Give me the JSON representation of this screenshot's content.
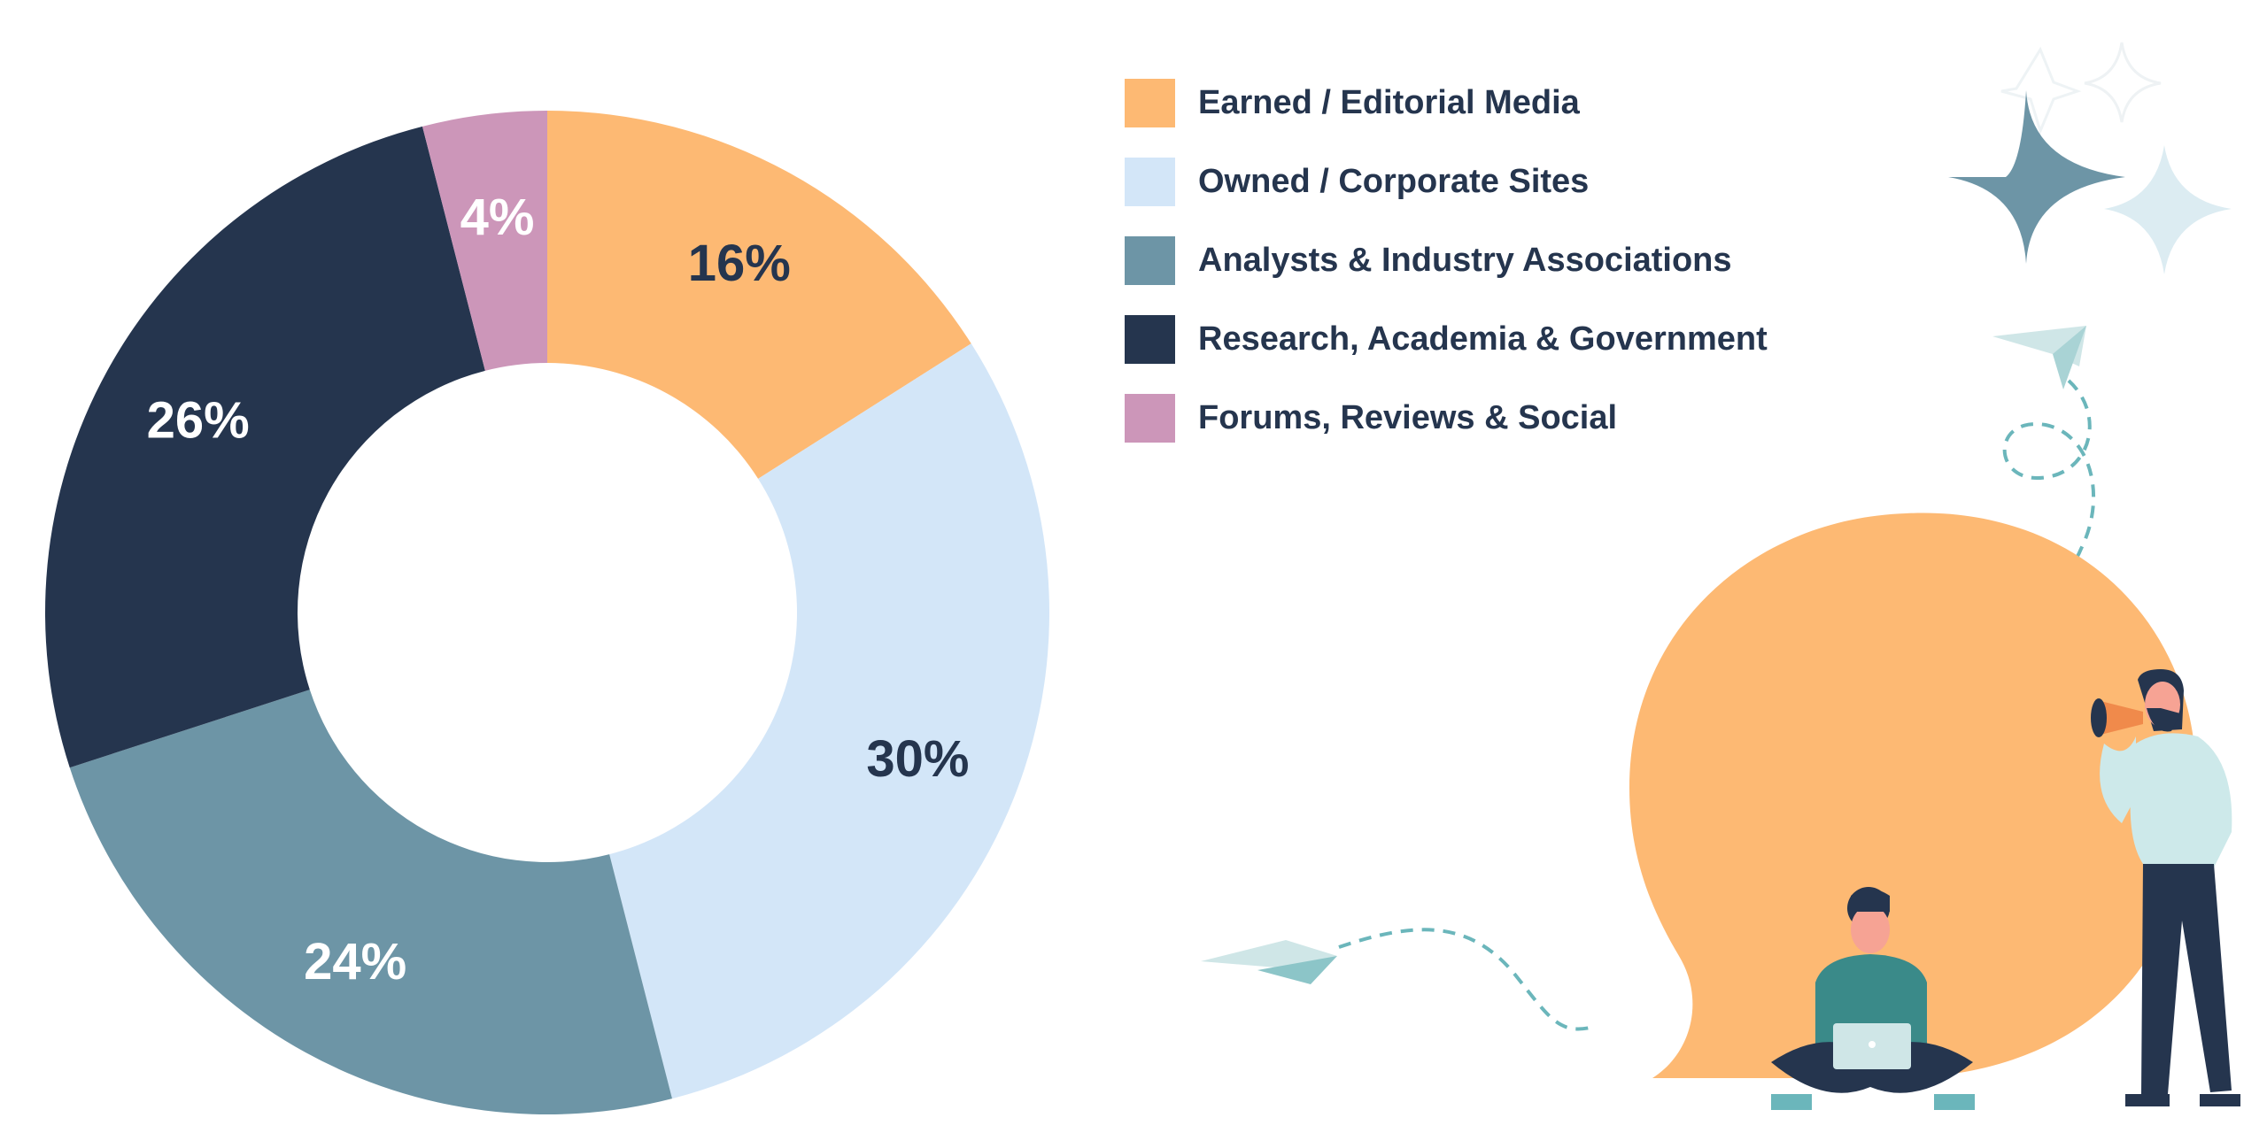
{
  "chart_data": {
    "type": "donut",
    "series": [
      {
        "label": "Earned / Editorial Media",
        "value": 16,
        "display": "16%",
        "color": "#fdb973",
        "label_color": "#25354e"
      },
      {
        "label": "Owned / Corporate Sites",
        "value": 30,
        "display": "30%",
        "color": "#d3e6f8",
        "label_color": "#25354e"
      },
      {
        "label": "Analysts & Industry Associations",
        "value": 24,
        "display": "24%",
        "color": "#6d95a6",
        "label_color": "#ffffff"
      },
      {
        "label": "Research, Academia & Government",
        "value": 26,
        "display": "26%",
        "color": "#25354e",
        "label_color": "#ffffff"
      },
      {
        "label": "Forums, Reviews & Social",
        "value": 4,
        "display": "4%",
        "color": "#cc96b9",
        "label_color": "#ffffff"
      }
    ],
    "legend_position": "top-right"
  },
  "illustration": {
    "icons": [
      "sparkle-icon",
      "paper-plane-icon",
      "speech-bubble-icon",
      "person-with-laptop-icon",
      "person-with-megaphone-icon"
    ]
  }
}
